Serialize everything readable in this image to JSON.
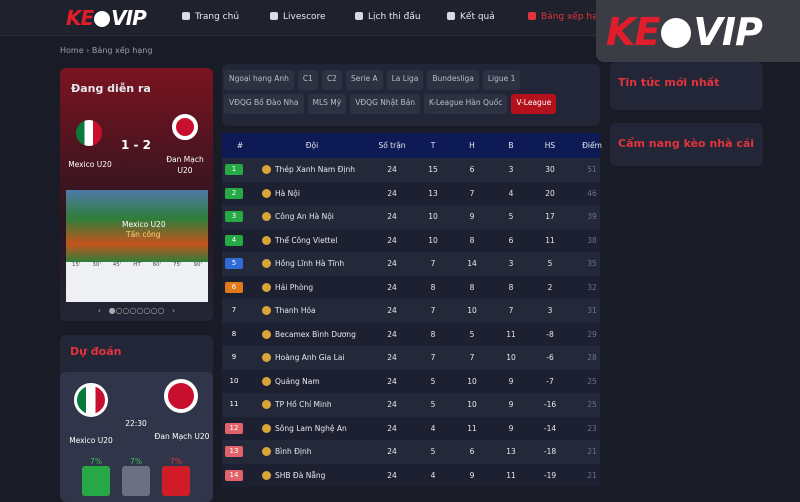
{
  "logo": {
    "left": "KE",
    "right": "VIP"
  },
  "nav": [
    "Trang chủ",
    "Livescore",
    "Lịch thi đấu",
    "Kết quả",
    "Bảng xếp hạng"
  ],
  "breadcrumb": [
    "Home",
    "Bảng xếp hạng"
  ],
  "live": {
    "title": "Đang diễn ra",
    "home": "Mexico U20",
    "score": "1 - 2",
    "away": "Đan Mạch U20",
    "field_team": "Mexico U20",
    "field_action": "Tấn công",
    "timeline": [
      "15'",
      "30'",
      "45'",
      "HT",
      "60'",
      "75'",
      "90'"
    ]
  },
  "prediction": {
    "title": "Dự đoán",
    "home": "Mexico U20",
    "time": "22:30",
    "away": "Đan Mạch U20",
    "odds": [
      "7%",
      "7%",
      "7%"
    ]
  },
  "tabs": [
    "Ngoại hạng Anh",
    "C1",
    "C2",
    "Serie A",
    "La Liga",
    "Bundesliga",
    "Ligue 1",
    "VĐQG Bồ Đào Nha",
    "MLS Mỹ",
    "VĐQG Nhật Bản",
    "K-League Hàn Quốc",
    "V-League"
  ],
  "active_tab": "V-League",
  "table": {
    "headers": [
      "#",
      "Đội",
      "Số trận",
      "T",
      "H",
      "B",
      "HS",
      "Điểm"
    ],
    "rows": [
      [
        1,
        "Thép Xanh Nam Định",
        24,
        15,
        6,
        3,
        30,
        51
      ],
      [
        2,
        "Hà Nội",
        24,
        13,
        7,
        4,
        20,
        46
      ],
      [
        3,
        "Công An Hà Nội",
        24,
        10,
        9,
        5,
        17,
        39
      ],
      [
        4,
        "Thể Công Viettel",
        24,
        10,
        8,
        6,
        11,
        38
      ],
      [
        5,
        "Hồng Lĩnh Hà Tĩnh",
        24,
        7,
        14,
        3,
        5,
        35
      ],
      [
        6,
        "Hải Phòng",
        24,
        8,
        8,
        8,
        2,
        32
      ],
      [
        7,
        "Thanh Hóa",
        24,
        7,
        10,
        7,
        3,
        31
      ],
      [
        8,
        "Becamex Bình Dương",
        24,
        8,
        5,
        11,
        -8,
        29
      ],
      [
        9,
        "Hoàng Anh Gia Lai",
        24,
        7,
        7,
        10,
        -6,
        28
      ],
      [
        10,
        "Quảng Nam",
        24,
        5,
        10,
        9,
        -7,
        25
      ],
      [
        11,
        "TP Hồ Chí Minh",
        24,
        5,
        10,
        9,
        -16,
        25
      ],
      [
        12,
        "Sông Lam Nghệ An",
        24,
        4,
        11,
        9,
        -14,
        23
      ],
      [
        13,
        "Bình Định",
        24,
        5,
        6,
        13,
        -18,
        21
      ],
      [
        14,
        "SHB Đà Nẵng",
        24,
        4,
        9,
        11,
        -19,
        21
      ]
    ]
  },
  "sidebar": [
    "Tin tức mới nhất",
    "Cẩm nang kèo nhà cái"
  ]
}
